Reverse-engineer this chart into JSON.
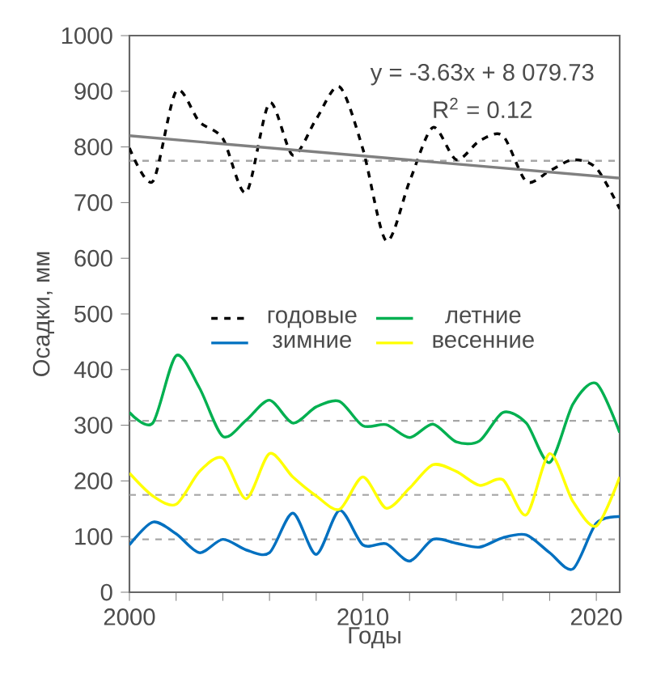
{
  "chart_data": {
    "type": "line",
    "xlabel": "Годы",
    "ylabel": "Осадки, мм",
    "x": [
      2000,
      2001,
      2002,
      2003,
      2004,
      2005,
      2006,
      2007,
      2008,
      2009,
      2010,
      2011,
      2012,
      2013,
      2014,
      2015,
      2016,
      2017,
      2018,
      2019,
      2020,
      2021
    ],
    "xlim": [
      2000,
      2021
    ],
    "xticks": [
      2000,
      {
        "value": 2002,
        "label": null
      },
      {
        "value": 2004,
        "label": null
      },
      {
        "value": 2006,
        "label": null
      },
      {
        "value": 2008,
        "label": null
      },
      2010,
      {
        "value": 2012,
        "label": null
      },
      {
        "value": 2014,
        "label": null
      },
      {
        "value": 2016,
        "label": null
      },
      {
        "value": 2018,
        "label": null
      },
      2020
    ],
    "ylim": [
      0,
      1000
    ],
    "yticks": [
      0,
      100,
      200,
      300,
      400,
      500,
      600,
      700,
      800,
      900,
      1000
    ],
    "series": [
      {
        "name": "годовые",
        "color": "#000000",
        "line_style": "dashed",
        "values": [
          798,
          738,
          900,
          845,
          815,
          718,
          879,
          785,
          850,
          908,
          796,
          631,
          738,
          835,
          777,
          811,
          820,
          738,
          757,
          777,
          762,
          689
        ]
      },
      {
        "name": "летние",
        "color": "#00b050",
        "values": [
          323,
          304,
          425,
          367,
          280,
          309,
          345,
          304,
          333,
          343,
          299,
          301,
          278,
          302,
          270,
          272,
          323,
          304,
          233,
          338,
          375,
          287
        ]
      },
      {
        "name": "зимние",
        "color": "#0070c0",
        "values": [
          85,
          126,
          105,
          71,
          95,
          76,
          71,
          142,
          68,
          147,
          85,
          87,
          56,
          95,
          88,
          81,
          98,
          103,
          71,
          42,
          124,
          136
        ]
      },
      {
        "name": "весенние",
        "color": "#ffff00",
        "values": [
          214,
          173,
          158,
          217,
          241,
          168,
          249,
          207,
          173,
          149,
          207,
          151,
          187,
          229,
          217,
          192,
          202,
          139,
          249,
          163,
          119,
          207
        ]
      },
      {
        "type": "line",
        "color": "#808080",
        "x": [
          2000,
          2021
        ],
        "values": [
          820,
          744
        ]
      }
    ],
    "ref_lines": [
      {
        "axis": "y",
        "value": 775,
        "color": "#a6a6a6",
        "line_style": "dashed"
      },
      {
        "axis": "y",
        "value": 308,
        "color": "#a6a6a6",
        "line_style": "dashed"
      },
      {
        "axis": "y",
        "value": 175,
        "color": "#a6a6a6",
        "line_style": "dashed"
      },
      {
        "axis": "y",
        "value": 95,
        "color": "#a6a6a6",
        "line_style": "dashed"
      }
    ],
    "annotations": [
      "y = -3.63x + 8 079.73",
      "R$^{2}$ = 0.12"
    ],
    "legend": "center",
    "marker": "none",
    "line_style": "solid",
    "grid": false
  }
}
